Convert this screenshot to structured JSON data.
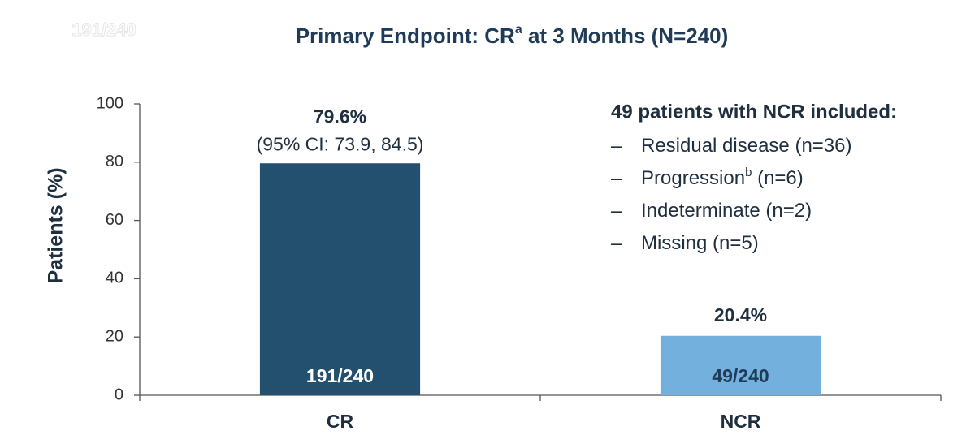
{
  "chart_data": {
    "type": "bar",
    "watermark": "191/240",
    "title_parts": [
      "Primary Endpoint: CR",
      "a",
      " at 3 Months (N=240)"
    ],
    "y_label": "Patients (%)",
    "categories": [
      "CR",
      "NCR"
    ],
    "values": [
      79.6,
      20.4
    ],
    "value_labels": [
      "79.6%",
      "20.4%"
    ],
    "value_sublabels": [
      "(95% CI: 73.9, 84.5)",
      null
    ],
    "inner_labels": [
      "191/240",
      "49/240"
    ],
    "inner_label_colors": [
      "#ffffff",
      "#1f3b57"
    ],
    "colors": [
      "#23506f",
      "#74b0de"
    ],
    "ylim": [
      0,
      100
    ],
    "yticks": [
      0,
      20,
      40,
      60,
      80,
      100
    ],
    "note": {
      "heading": "49 patients with NCR included:",
      "items": [
        {
          "text": "Residual disease (n=36)"
        },
        {
          "text": "Progression",
          "superscript": "b",
          "rest": " (n=6)"
        },
        {
          "text": "Indeterminate (n=2)"
        },
        {
          "text": "Missing (n=5)"
        }
      ]
    }
  }
}
